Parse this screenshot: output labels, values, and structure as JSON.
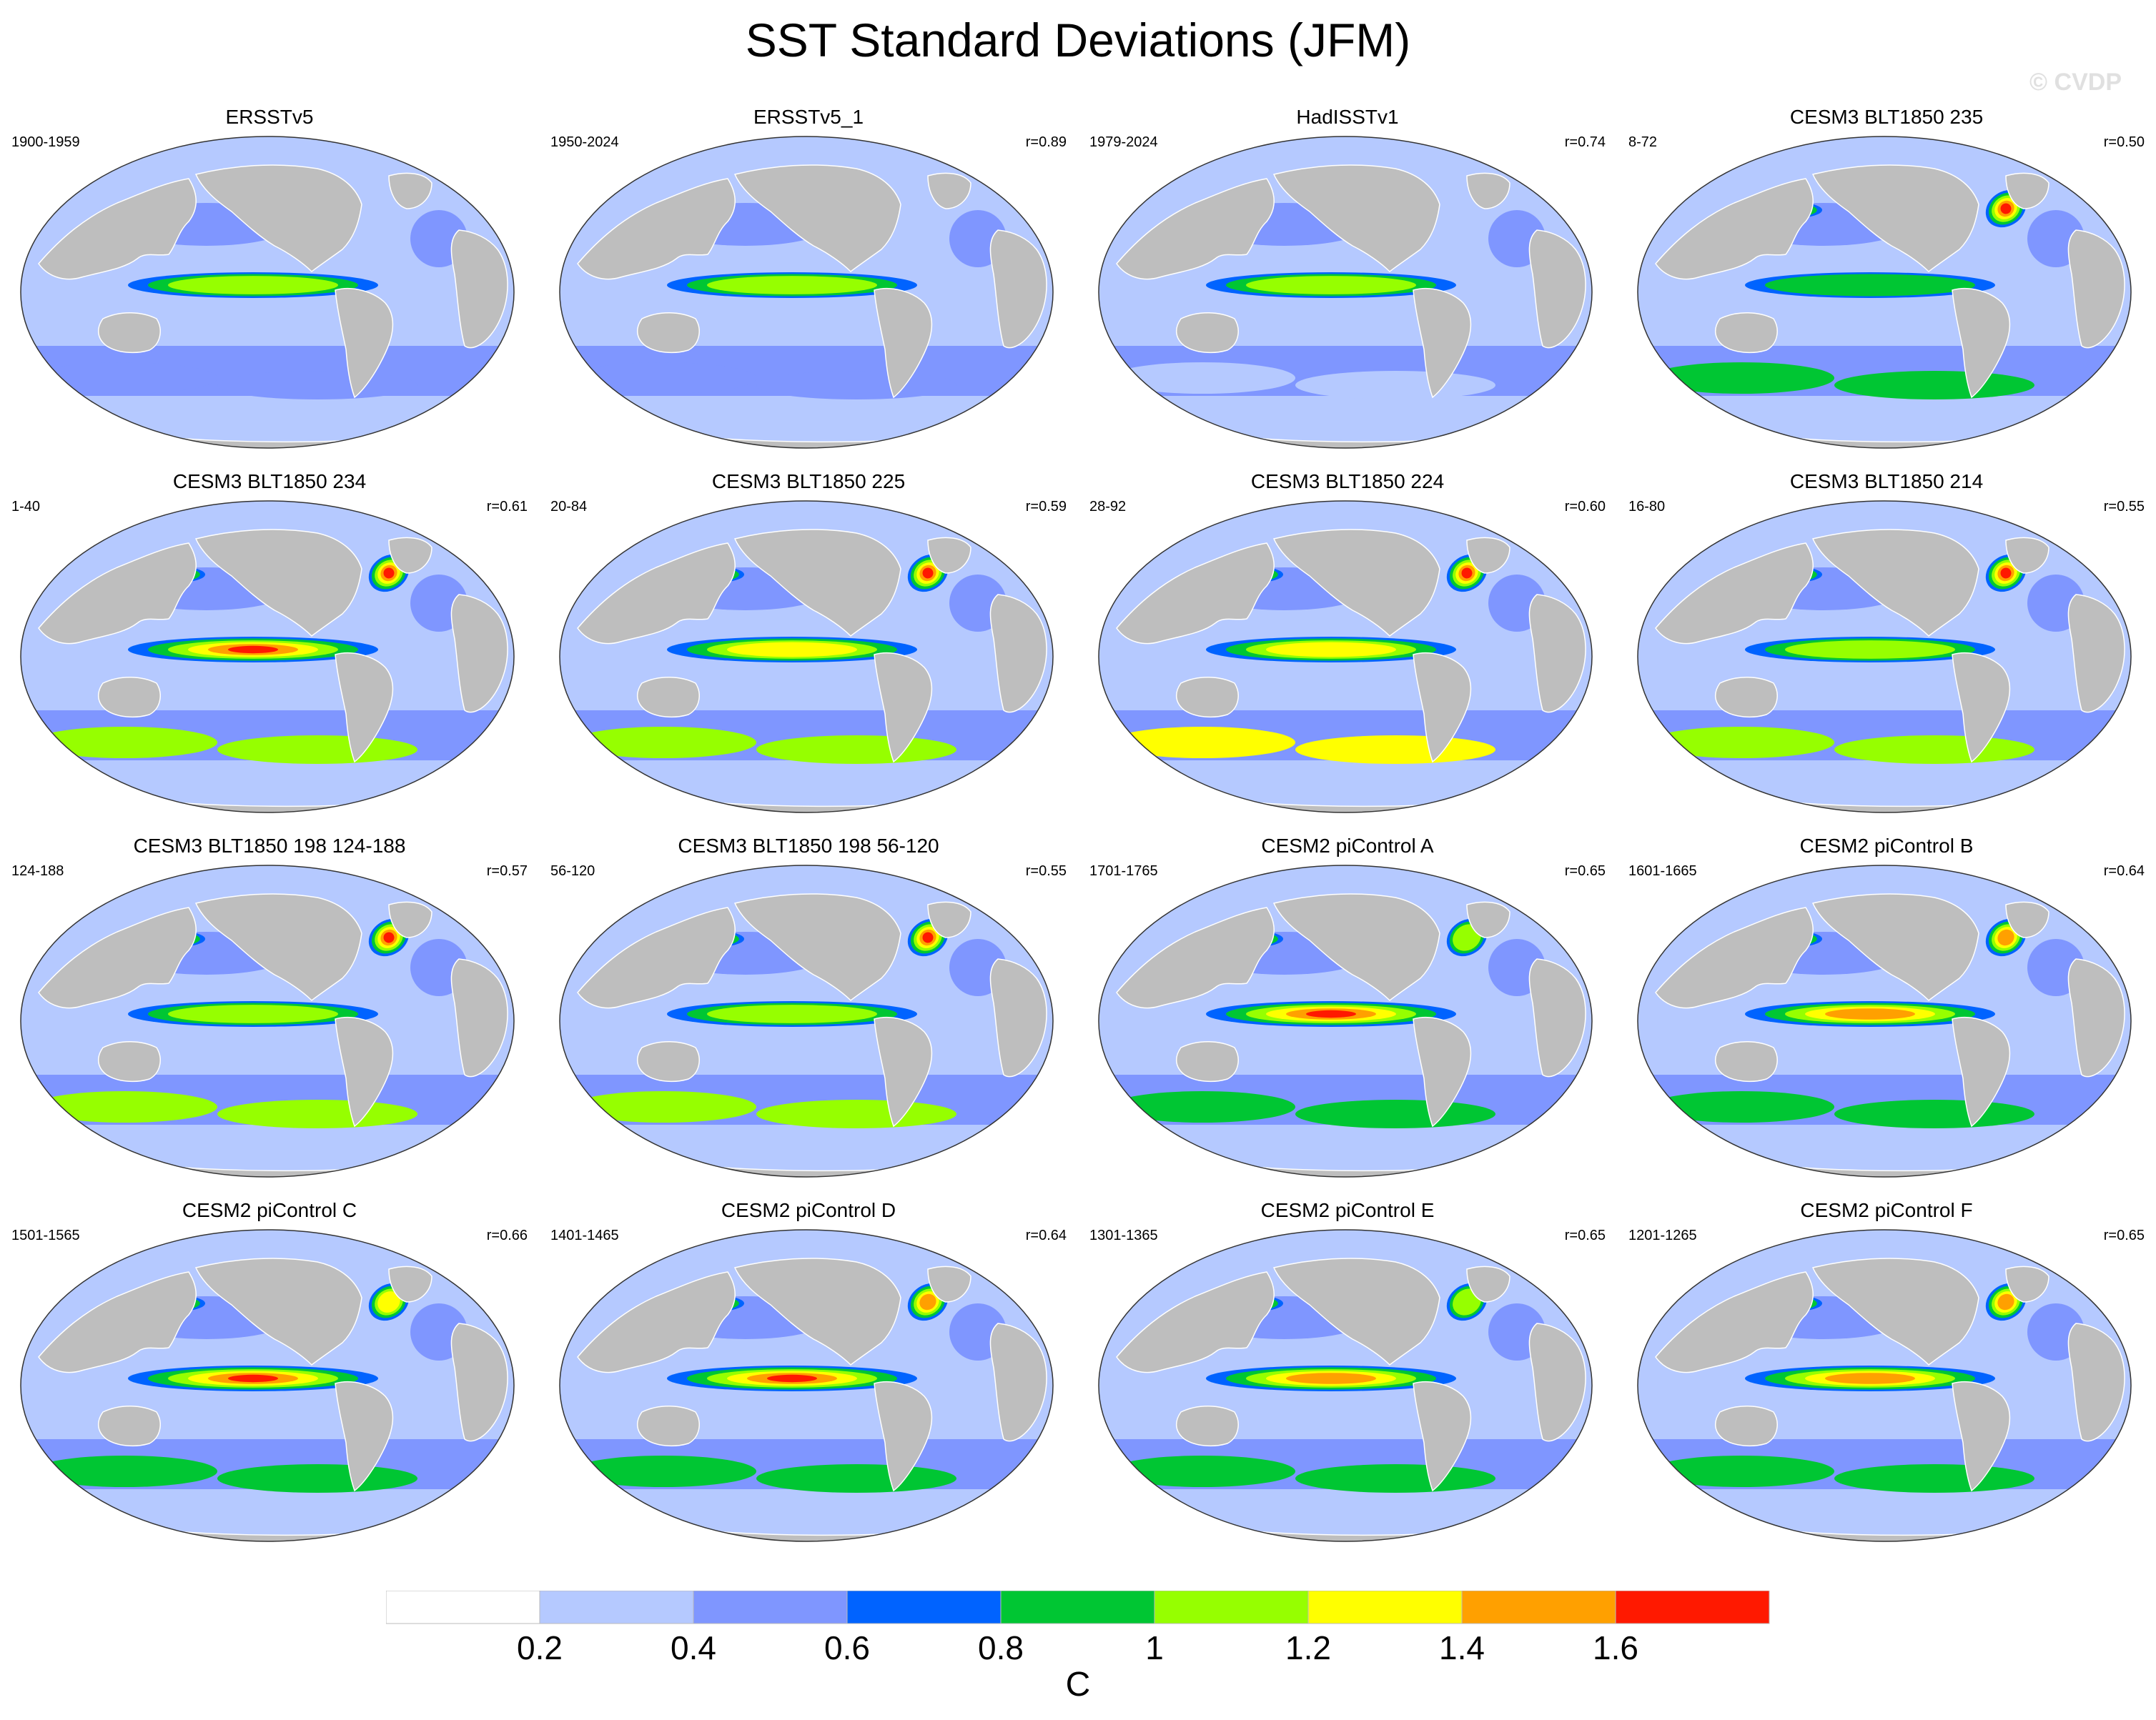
{
  "title": "SST Standard Deviations (JFM)",
  "watermark": "© CVDP",
  "colors": {
    "land": "#bebebe",
    "levels": [
      "#ffffff",
      "#b5c9ff",
      "#7f96ff",
      "#0063ff",
      "#00c633",
      "#96ff00",
      "#ffff00",
      "#ffa000",
      "#ff1900"
    ]
  },
  "colorbar": {
    "units": "C",
    "ticks": [
      "0.2",
      "0.4",
      "0.6",
      "0.8",
      "1",
      "1.2",
      "1.4",
      "1.6"
    ]
  },
  "chart_data": {
    "type": "heatmap",
    "projection": "Robinson global map",
    "layout": "4x4 panel grid",
    "panels": [
      {
        "title": "ERSSTv5",
        "years": "1900-1959",
        "r": "",
        "nino_peak": 1.0,
        "kuroshio": 0.5,
        "gulfstream": 0.4,
        "southern": 0.5
      },
      {
        "title": "ERSSTv5_1",
        "years": "1950-2024",
        "r": "r=0.89",
        "nino_peak": 1.0,
        "kuroshio": 0.4,
        "gulfstream": 0.4,
        "southern": 0.4
      },
      {
        "title": "HadISSTv1",
        "years": "1979-2024",
        "r": "r=0.74",
        "nino_peak": 1.0,
        "kuroshio": 0.3,
        "gulfstream": 0.3,
        "southern": 0.3
      },
      {
        "title": "CESM3 BLT1850 235",
        "years": "8-72",
        "r": "r=0.50",
        "nino_peak": 0.9,
        "kuroshio": 1.6,
        "gulfstream": 1.6,
        "southern": 0.9
      },
      {
        "title": "CESM3 BLT1850 234",
        "years": "1-40",
        "r": "r=0.61",
        "nino_peak": 1.7,
        "kuroshio": 1.6,
        "gulfstream": 1.6,
        "southern": 1.1
      },
      {
        "title": "CESM3 BLT1850 225",
        "years": "20-84",
        "r": "r=0.59",
        "nino_peak": 1.2,
        "kuroshio": 1.6,
        "gulfstream": 1.6,
        "southern": 1.0
      },
      {
        "title": "CESM3 BLT1850 224",
        "years": "28-92",
        "r": "r=0.60",
        "nino_peak": 1.2,
        "kuroshio": 1.6,
        "gulfstream": 1.6,
        "southern": 1.3
      },
      {
        "title": "CESM3 BLT1850 214",
        "years": "16-80",
        "r": "r=0.55",
        "nino_peak": 1.0,
        "kuroshio": 1.6,
        "gulfstream": 1.6,
        "southern": 1.0
      },
      {
        "title": "CESM3 BLT1850 198 124-188",
        "years": "124-188",
        "r": "r=0.57",
        "nino_peak": 1.0,
        "kuroshio": 1.6,
        "gulfstream": 1.6,
        "southern": 1.1
      },
      {
        "title": "CESM3 BLT1850 198 56-120",
        "years": "56-120",
        "r": "r=0.55",
        "nino_peak": 1.0,
        "kuroshio": 1.6,
        "gulfstream": 1.6,
        "southern": 1.0
      },
      {
        "title": "CESM2 piControl A",
        "years": "1701-1765",
        "r": "r=0.65",
        "nino_peak": 1.7,
        "kuroshio": 1.4,
        "gulfstream": 1.0,
        "southern": 0.9
      },
      {
        "title": "CESM2 piControl B",
        "years": "1601-1665",
        "r": "r=0.64",
        "nino_peak": 1.5,
        "kuroshio": 1.0,
        "gulfstream": 1.4,
        "southern": 0.8
      },
      {
        "title": "CESM2 piControl C",
        "years": "1501-1565",
        "r": "r=0.66",
        "nino_peak": 1.7,
        "kuroshio": 1.0,
        "gulfstream": 1.2,
        "southern": 0.9
      },
      {
        "title": "CESM2 piControl D",
        "years": "1401-1465",
        "r": "r=0.64",
        "nino_peak": 1.6,
        "kuroshio": 1.0,
        "gulfstream": 1.4,
        "southern": 0.9
      },
      {
        "title": "CESM2 piControl E",
        "years": "1301-1365",
        "r": "r=0.65",
        "nino_peak": 1.5,
        "kuroshio": 1.0,
        "gulfstream": 1.0,
        "southern": 0.8
      },
      {
        "title": "CESM2 piControl F",
        "years": "1201-1265",
        "r": "r=0.65",
        "nino_peak": 1.5,
        "kuroshio": 1.0,
        "gulfstream": 1.4,
        "southern": 0.9
      }
    ]
  }
}
